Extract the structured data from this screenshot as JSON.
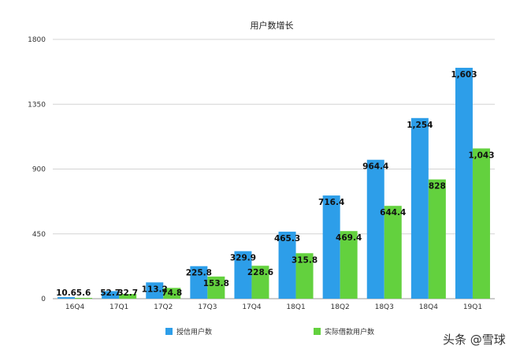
{
  "chart_data": {
    "type": "bar",
    "title": "用户数增长",
    "categories": [
      "16Q4",
      "17Q1",
      "17Q2",
      "17Q3",
      "17Q4",
      "18Q1",
      "18Q2",
      "18Q3",
      "18Q4",
      "19Q1"
    ],
    "series": [
      {
        "name": "授信用户数",
        "color": "#2d9ee9",
        "values": [
          10.6,
          52.7,
          113.2,
          225.8,
          329.9,
          465.3,
          716.4,
          964.4,
          1254,
          1603
        ],
        "labels": [
          "10.6",
          "52.7",
          "113.2",
          "225.8",
          "329.9",
          "465.3",
          "716.4",
          "964.4",
          "1,254",
          "1,603"
        ]
      },
      {
        "name": "实际借款用户数",
        "color": "#63d13e",
        "values": [
          5.6,
          32.7,
          74.8,
          153.8,
          228.6,
          315.8,
          469.4,
          644.4,
          828,
          1043
        ],
        "labels": [
          "5.6",
          "32.7",
          "74.8",
          "153.8",
          "228.6",
          "315.8",
          "469.4",
          "644.4",
          "828",
          "1,043"
        ]
      }
    ],
    "yticks": [
      "0",
      "450",
      "900",
      "1350",
      "1800"
    ],
    "ylim": [
      0,
      1800
    ],
    "grid": true,
    "legend_position": "bottom"
  },
  "watermark": "头条 @雪球"
}
